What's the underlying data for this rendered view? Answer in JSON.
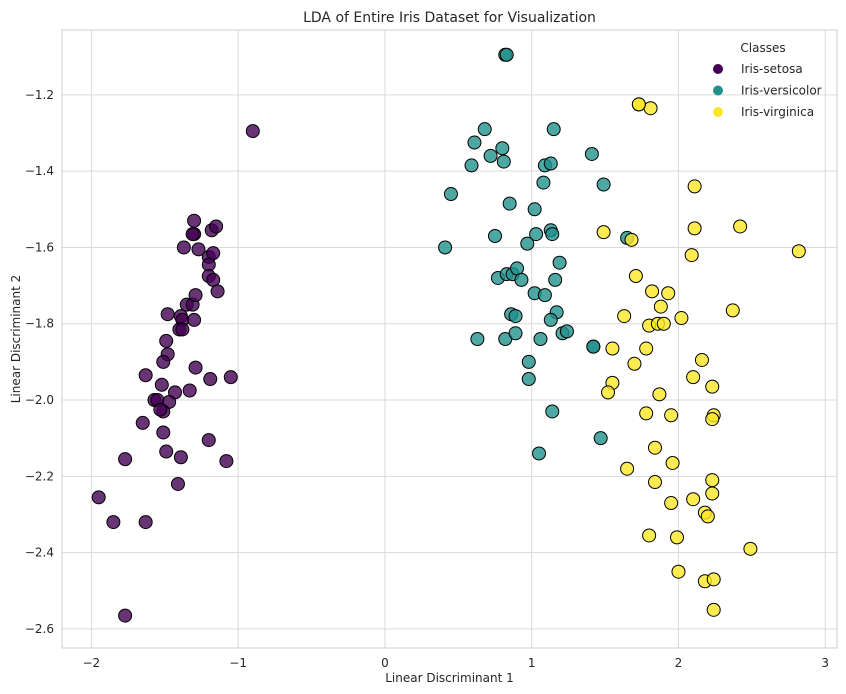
{
  "chart_data": {
    "type": "scatter",
    "title": "LDA of Entire Iris Dataset for Visualization",
    "xlabel": "Linear Discriminant 1",
    "ylabel": "Linear Discriminant 2",
    "xlim": [
      -2.2,
      3.08
    ],
    "ylim": [
      -2.65,
      -1.03
    ],
    "xticks": [
      -2,
      -1,
      0,
      1,
      2,
      3
    ],
    "xtick_labels": [
      "−2",
      "−1",
      "0",
      "1",
      "2",
      "3"
    ],
    "yticks": [
      -1.2,
      -1.4,
      -1.6,
      -1.8,
      -2.0,
      -2.2,
      -2.4,
      -2.6
    ],
    "ytick_labels": [
      "−1.2",
      "−1.4",
      "−1.6",
      "−1.8",
      "−2.0",
      "−2.2",
      "−2.4",
      "−2.6"
    ],
    "grid": true,
    "legend": {
      "title": "Classes",
      "placement": "top-right"
    },
    "series": [
      {
        "name": "Iris-setosa",
        "color": "#440154",
        "points": [
          [
            -0.9,
            -1.295
          ],
          [
            -1.3,
            -1.53
          ],
          [
            -1.3,
            -1.565
          ],
          [
            -1.31,
            -1.565
          ],
          [
            -1.18,
            -1.555
          ],
          [
            -1.15,
            -1.545
          ],
          [
            -1.37,
            -1.6
          ],
          [
            -1.27,
            -1.605
          ],
          [
            -1.2,
            -1.625
          ],
          [
            -1.17,
            -1.615
          ],
          [
            -1.2,
            -1.645
          ],
          [
            -1.2,
            -1.675
          ],
          [
            -1.17,
            -1.685
          ],
          [
            -1.14,
            -1.715
          ],
          [
            -1.35,
            -1.75
          ],
          [
            -1.31,
            -1.75
          ],
          [
            -1.29,
            -1.725
          ],
          [
            -1.39,
            -1.78
          ],
          [
            -1.48,
            -1.775
          ],
          [
            -1.38,
            -1.79
          ],
          [
            -1.3,
            -1.79
          ],
          [
            -1.4,
            -1.815
          ],
          [
            -1.38,
            -1.815
          ],
          [
            -1.49,
            -1.845
          ],
          [
            -1.48,
            -1.88
          ],
          [
            -1.29,
            -1.915
          ],
          [
            -1.51,
            -1.9
          ],
          [
            -1.63,
            -1.935
          ],
          [
            -1.19,
            -1.945
          ],
          [
            -1.05,
            -1.94
          ],
          [
            -1.52,
            -1.96
          ],
          [
            -1.43,
            -1.98
          ],
          [
            -1.33,
            -1.975
          ],
          [
            -1.57,
            -2.0
          ],
          [
            -1.55,
            -2.0
          ],
          [
            -1.47,
            -2.005
          ],
          [
            -1.51,
            -2.03
          ],
          [
            -1.53,
            -2.025
          ],
          [
            -1.65,
            -2.06
          ],
          [
            -1.51,
            -2.085
          ],
          [
            -1.2,
            -2.105
          ],
          [
            -1.49,
            -2.135
          ],
          [
            -1.39,
            -2.15
          ],
          [
            -1.77,
            -2.155
          ],
          [
            -1.08,
            -2.16
          ],
          [
            -1.41,
            -2.22
          ],
          [
            -1.95,
            -2.255
          ],
          [
            -1.85,
            -2.32
          ],
          [
            -1.63,
            -2.32
          ],
          [
            -1.77,
            -2.565
          ]
        ]
      },
      {
        "name": "Iris-versicolor",
        "color": "#21918c",
        "points": [
          [
            0.82,
            -1.095
          ],
          [
            0.83,
            -1.095
          ],
          [
            0.68,
            -1.29
          ],
          [
            1.15,
            -1.29
          ],
          [
            0.8,
            -1.34
          ],
          [
            0.61,
            -1.325
          ],
          [
            0.59,
            -1.385
          ],
          [
            0.72,
            -1.36
          ],
          [
            0.81,
            -1.375
          ],
          [
            1.41,
            -1.355
          ],
          [
            1.09,
            -1.385
          ],
          [
            1.13,
            -1.38
          ],
          [
            1.08,
            -1.43
          ],
          [
            1.49,
            -1.435
          ],
          [
            0.45,
            -1.46
          ],
          [
            0.85,
            -1.485
          ],
          [
            1.02,
            -1.5
          ],
          [
            0.41,
            -1.6
          ],
          [
            0.75,
            -1.57
          ],
          [
            1.03,
            -1.565
          ],
          [
            1.13,
            -1.555
          ],
          [
            1.14,
            -1.565
          ],
          [
            0.97,
            -1.59
          ],
          [
            1.65,
            -1.575
          ],
          [
            1.19,
            -1.64
          ],
          [
            0.77,
            -1.68
          ],
          [
            0.83,
            -1.67
          ],
          [
            0.87,
            -1.67
          ],
          [
            0.9,
            -1.655
          ],
          [
            0.93,
            -1.685
          ],
          [
            1.16,
            -1.685
          ],
          [
            1.02,
            -1.72
          ],
          [
            1.09,
            -1.725
          ],
          [
            0.86,
            -1.775
          ],
          [
            0.89,
            -1.78
          ],
          [
            1.17,
            -1.77
          ],
          [
            1.13,
            -1.79
          ],
          [
            0.63,
            -1.84
          ],
          [
            0.82,
            -1.84
          ],
          [
            0.89,
            -1.825
          ],
          [
            1.06,
            -1.84
          ],
          [
            1.21,
            -1.825
          ],
          [
            1.24,
            -1.82
          ],
          [
            1.42,
            -1.86
          ],
          [
            0.98,
            -1.9
          ],
          [
            0.98,
            -1.945
          ],
          [
            1.14,
            -2.03
          ],
          [
            1.47,
            -2.1
          ],
          [
            1.05,
            -2.14
          ],
          [
            1.42,
            -1.86
          ]
        ]
      },
      {
        "name": "Iris-virginica",
        "color": "#fde725",
        "points": [
          [
            1.73,
            -1.225
          ],
          [
            1.81,
            -1.235
          ],
          [
            2.11,
            -1.44
          ],
          [
            1.49,
            -1.56
          ],
          [
            2.42,
            -1.545
          ],
          [
            2.11,
            -1.55
          ],
          [
            1.68,
            -1.58
          ],
          [
            2.82,
            -1.61
          ],
          [
            2.09,
            -1.62
          ],
          [
            1.71,
            -1.675
          ],
          [
            1.82,
            -1.715
          ],
          [
            1.93,
            -1.72
          ],
          [
            1.88,
            -1.755
          ],
          [
            2.37,
            -1.765
          ],
          [
            1.63,
            -1.78
          ],
          [
            2.02,
            -1.785
          ],
          [
            1.8,
            -1.805
          ],
          [
            1.86,
            -1.8
          ],
          [
            1.9,
            -1.8
          ],
          [
            1.78,
            -1.865
          ],
          [
            1.55,
            -1.865
          ],
          [
            1.7,
            -1.905
          ],
          [
            2.16,
            -1.895
          ],
          [
            2.1,
            -1.94
          ],
          [
            1.55,
            -1.955
          ],
          [
            2.23,
            -1.965
          ],
          [
            1.52,
            -1.98
          ],
          [
            1.87,
            -1.985
          ],
          [
            1.78,
            -2.035
          ],
          [
            1.95,
            -2.04
          ],
          [
            2.24,
            -2.04
          ],
          [
            2.23,
            -2.05
          ],
          [
            1.84,
            -2.125
          ],
          [
            1.96,
            -2.165
          ],
          [
            1.65,
            -2.18
          ],
          [
            1.84,
            -2.215
          ],
          [
            2.23,
            -2.21
          ],
          [
            2.23,
            -2.245
          ],
          [
            2.1,
            -2.26
          ],
          [
            1.95,
            -2.27
          ],
          [
            2.18,
            -2.295
          ],
          [
            2.2,
            -2.305
          ],
          [
            1.8,
            -2.355
          ],
          [
            1.99,
            -2.36
          ],
          [
            2.49,
            -2.39
          ],
          [
            2.0,
            -2.45
          ],
          [
            2.18,
            -2.475
          ],
          [
            2.24,
            -2.47
          ],
          [
            2.24,
            -2.55
          ],
          [
            1.73,
            -1.225
          ]
        ]
      }
    ]
  }
}
